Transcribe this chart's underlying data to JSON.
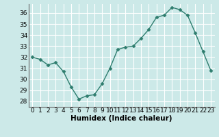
{
  "x": [
    0,
    1,
    2,
    3,
    4,
    5,
    6,
    7,
    8,
    9,
    10,
    11,
    12,
    13,
    14,
    15,
    16,
    17,
    18,
    19,
    20,
    21,
    22,
    23
  ],
  "y": [
    32.0,
    31.8,
    31.3,
    31.5,
    30.7,
    29.3,
    28.2,
    28.5,
    28.6,
    29.6,
    31.0,
    32.7,
    32.9,
    33.0,
    33.7,
    34.5,
    35.6,
    35.8,
    36.5,
    36.3,
    35.8,
    34.2,
    32.5,
    30.8
  ],
  "line_color": "#2e7d6e",
  "marker": "D",
  "marker_size": 2.5,
  "bg_color": "#cce9e8",
  "grid_color": "#ffffff",
  "xlabel": "Humidex (Indice chaleur)",
  "ylim": [
    27.5,
    36.8
  ],
  "xlim": [
    -0.5,
    23.5
  ],
  "yticks": [
    28,
    29,
    30,
    31,
    32,
    33,
    34,
    35,
    36
  ],
  "xticks": [
    0,
    1,
    2,
    3,
    4,
    5,
    6,
    7,
    8,
    9,
    10,
    11,
    12,
    13,
    14,
    15,
    16,
    17,
    18,
    19,
    20,
    21,
    22,
    23
  ],
  "xlabel_fontsize": 7.5,
  "tick_fontsize": 6.5,
  "line_width": 1.0
}
